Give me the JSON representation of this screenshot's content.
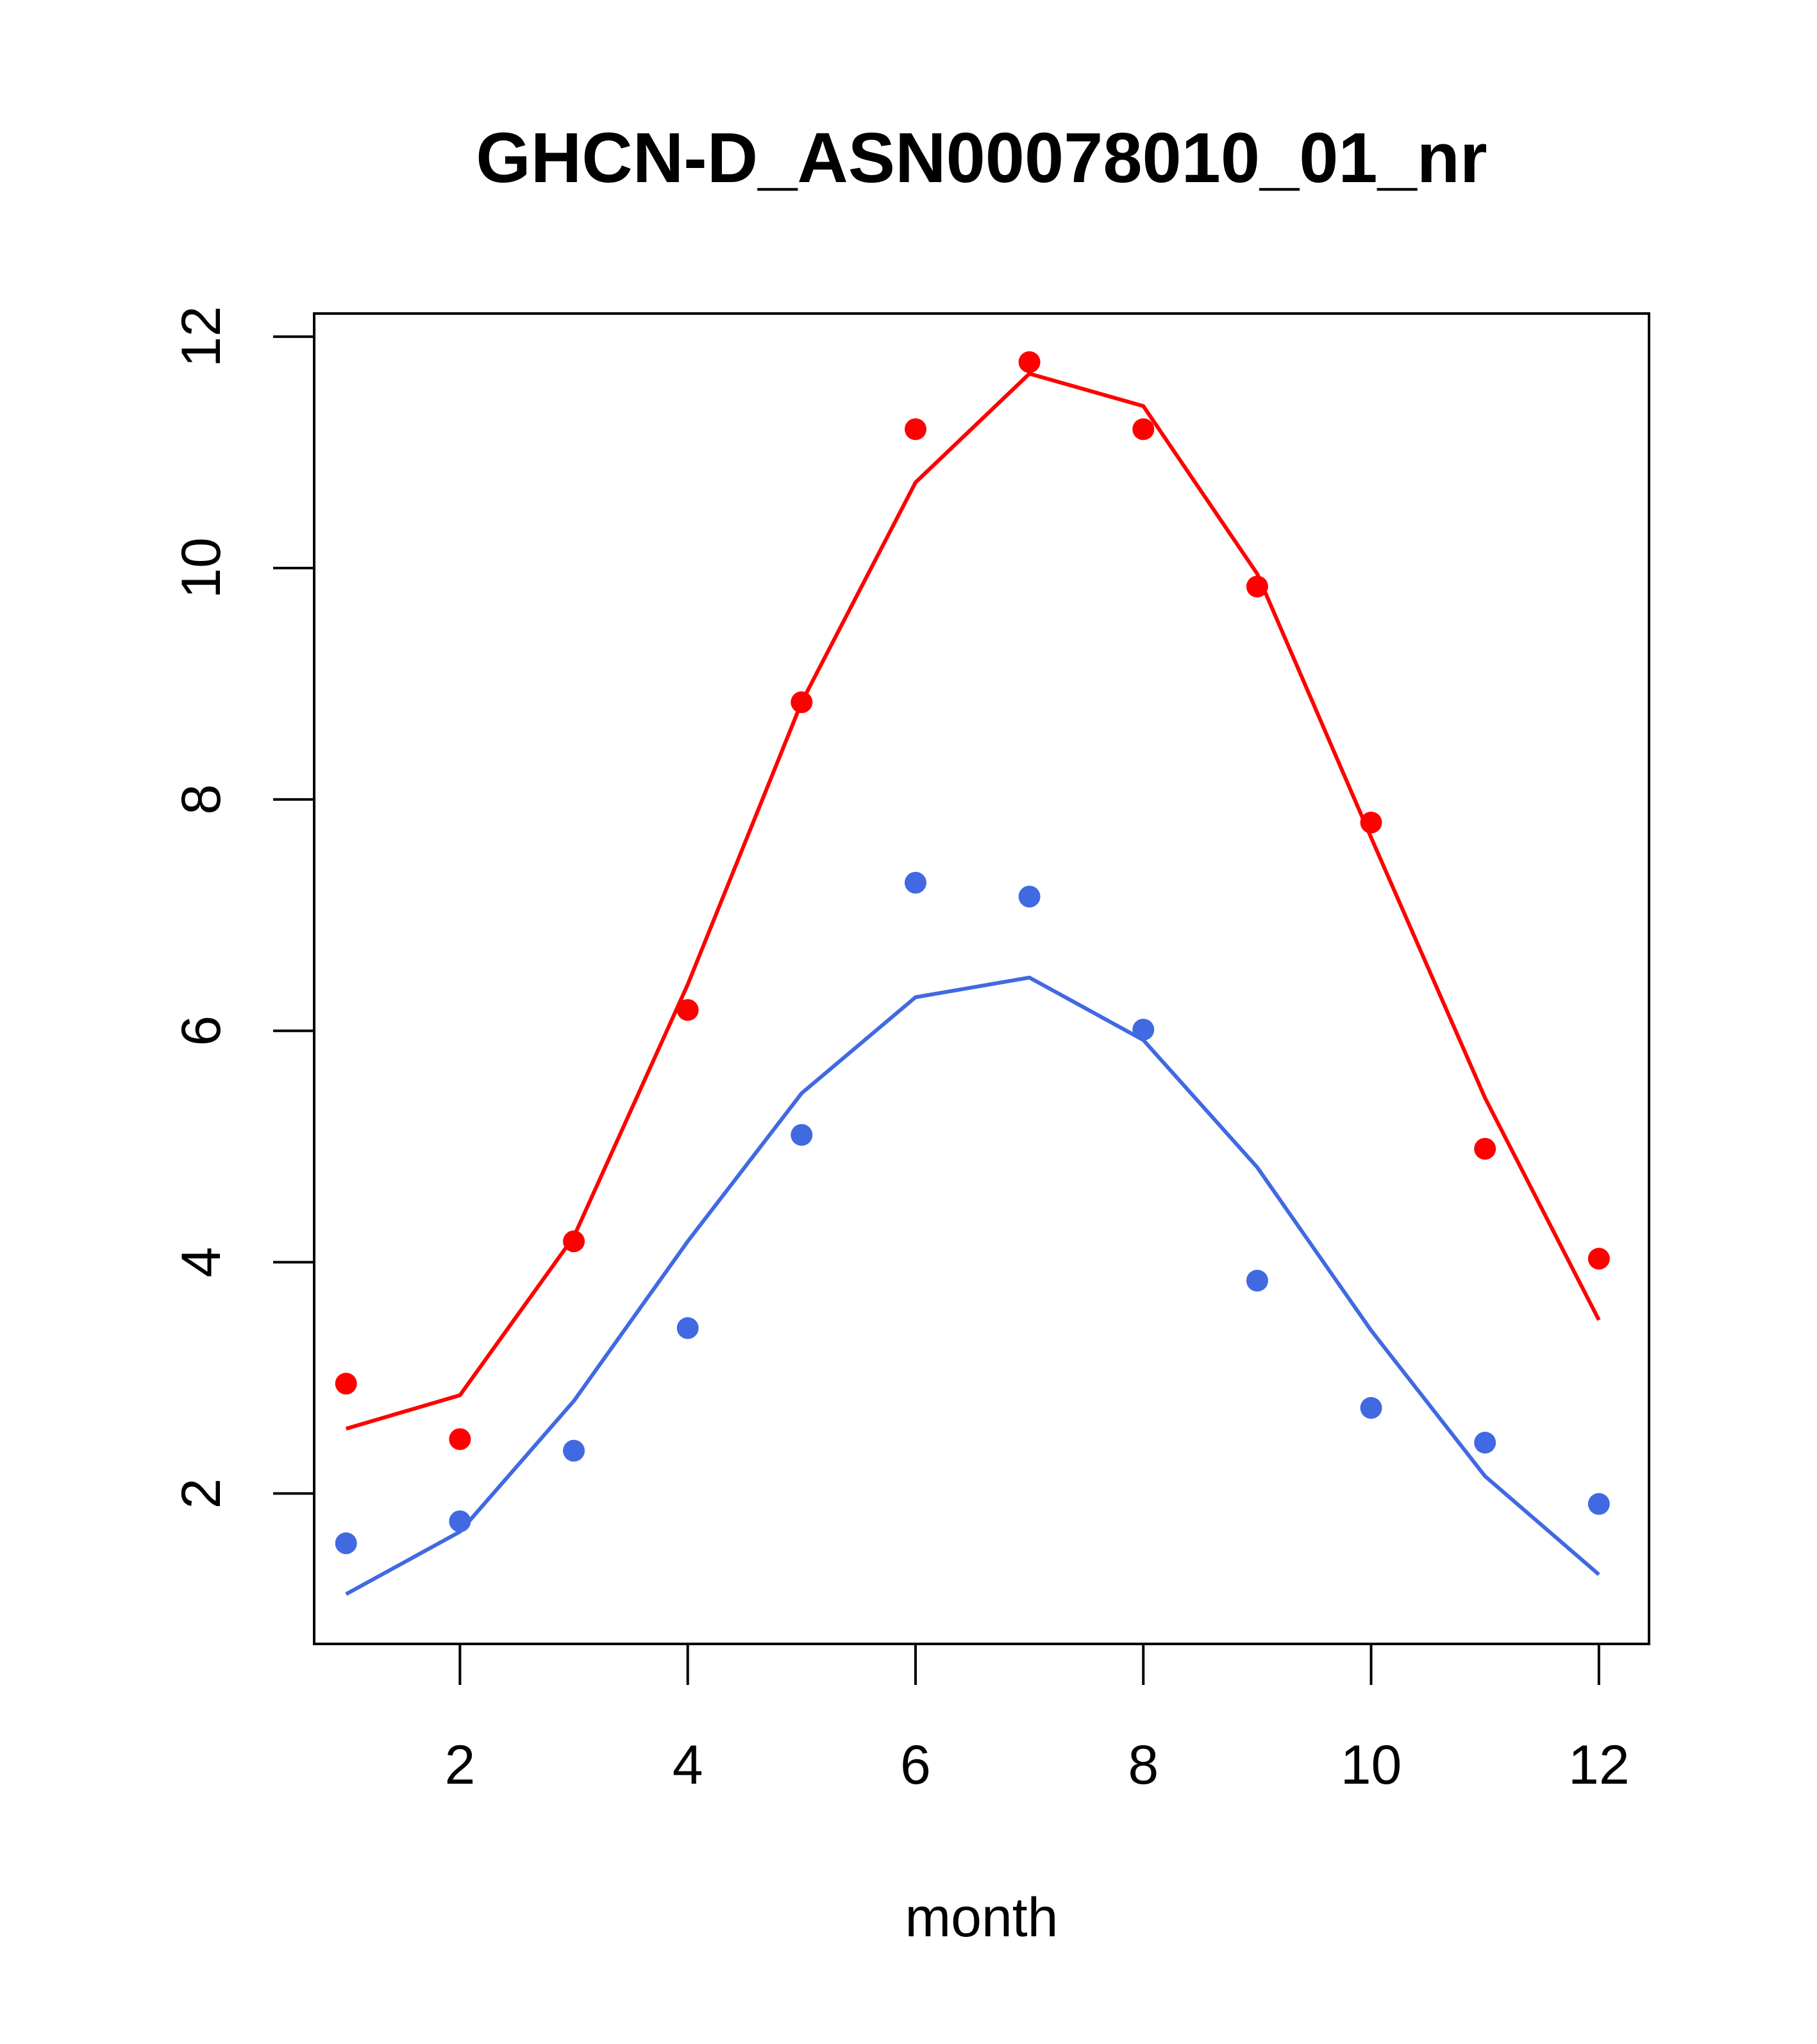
{
  "chart_data": {
    "type": "line",
    "title": "GHCN-D_ASN00078010_01_nr",
    "xlabel": "month",
    "ylabel": "",
    "x": [
      1,
      2,
      3,
      4,
      5,
      6,
      7,
      8,
      9,
      10,
      11,
      12
    ],
    "x_ticks": [
      2,
      4,
      6,
      8,
      10,
      12
    ],
    "y_ticks": [
      2,
      4,
      6,
      8,
      10,
      12
    ],
    "xlim": [
      0.72,
      12.44
    ],
    "ylim": [
      0.7,
      12.2
    ],
    "grid": false,
    "series": [
      {
        "color": "#ff0000",
        "points": [
          2.95,
          2.47,
          4.18,
          6.18,
          8.84,
          11.2,
          11.78,
          11.2,
          9.84,
          7.8,
          4.98,
          4.03
        ],
        "line": [
          2.56,
          2.85,
          4.22,
          6.4,
          8.84,
          10.74,
          11.68,
          11.4,
          9.95,
          7.67,
          5.42,
          3.5
        ]
      },
      {
        "color": "#4169e1",
        "points": [
          1.57,
          1.76,
          2.37,
          3.43,
          5.1,
          7.28,
          7.16,
          6.01,
          3.84,
          2.74,
          2.44,
          1.91
        ],
        "line": [
          1.13,
          1.67,
          2.8,
          4.18,
          5.46,
          6.29,
          6.46,
          5.92,
          4.82,
          3.41,
          2.15,
          1.3
        ]
      }
    ]
  }
}
